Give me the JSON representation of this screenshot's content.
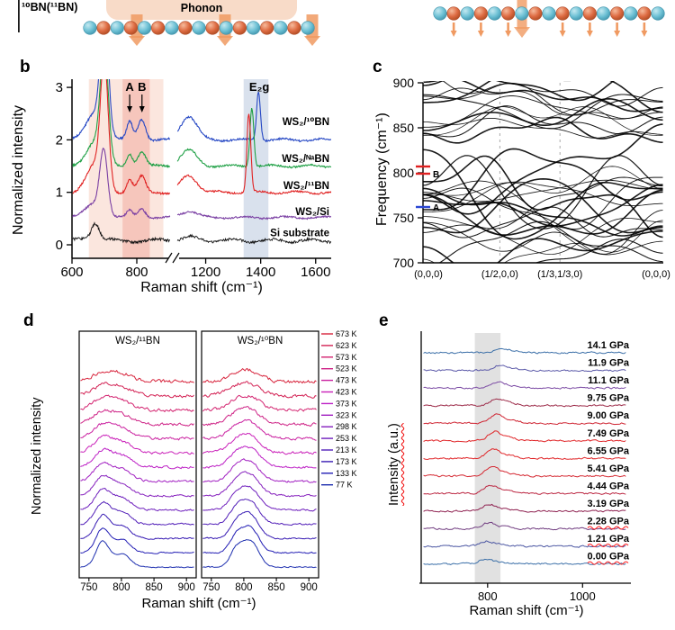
{
  "panel_a": {
    "isotope_label": "¹⁰BN(¹¹BN)",
    "phonon_label": "Phonon",
    "atom_color_1": "#6cc0d4",
    "atom_color_2": "#dd6a41",
    "atom_edge_1": "#3f93ab",
    "atom_edge_2": "#b14f2c",
    "arrow_color": "#f09a62",
    "box_color": "#f8dbc8"
  },
  "panel_letters": {
    "b": "b",
    "c": "c",
    "d": "d",
    "e": "e"
  },
  "chart_data": [
    {
      "id": "b",
      "type": "line",
      "xlabel": "Raman shift (cm⁻¹)",
      "ylabel": "Normalized intensity",
      "xticks": [
        600,
        800,
        1200,
        1400,
        1600
      ],
      "yticks": [
        0,
        1,
        2,
        3
      ],
      "axis_break": [
        905,
        1095
      ],
      "ylim": [
        0,
        3.15
      ],
      "shaded_bands": [
        {
          "x0": 652,
          "x1": 882,
          "color": "#f7cdbd",
          "opacity": 0.5
        },
        {
          "x0": 756,
          "x1": 840,
          "color": "#f2aca0",
          "opacity": 0.55
        },
        {
          "x0": 1338,
          "x1": 1428,
          "color": "#c9d4e6",
          "opacity": 0.7
        }
      ],
      "peak_labels": [
        {
          "text": "A",
          "x": 778,
          "arrow": true
        },
        {
          "text": "B",
          "x": 816,
          "arrow": true
        },
        {
          "text": "E₂g",
          "x": 1395,
          "arrow": false
        }
      ],
      "series": [
        {
          "name": "WS₂/¹⁰BN",
          "color": "#2547c4",
          "offset": 2.0,
          "label_v": 2.28,
          "main_peak_cm": 700,
          "main_peak_h": 2.3,
          "peak_A_h": 0.34,
          "peak_B_h": 0.4,
          "mid_peak_cm": 1138,
          "mid_peak_h": 0.45,
          "e2g_cm": 1392,
          "e2g_h": 0.92,
          "noise": 0.035
        },
        {
          "name": "WS₂/ᴺᵃBN",
          "color": "#1fa045",
          "offset": 1.5,
          "label_v": 1.58,
          "main_peak_cm": 700,
          "main_peak_h": 2.1,
          "peak_A_h": 0.24,
          "peak_B_h": 0.28,
          "mid_peak_cm": 1138,
          "mid_peak_h": 0.3,
          "e2g_cm": 1368,
          "e2g_h": 1.12,
          "noise": 0.035
        },
        {
          "name": "WS₂/¹¹BN",
          "color": "#e02222",
          "offset": 1.0,
          "label_v": 1.06,
          "main_peak_cm": 700,
          "main_peak_h": 2.3,
          "peak_A_h": 0.24,
          "peak_B_h": 0.3,
          "mid_peak_cm": 1138,
          "mid_peak_h": 0.32,
          "e2g_cm": 1357,
          "e2g_h": 1.5,
          "noise": 0.035
        },
        {
          "name": "WS₂/Si",
          "color": "#7a3fa3",
          "offset": 0.52,
          "label_v": 0.57,
          "main_peak_cm": 698,
          "main_peak_h": 1.2,
          "peak_A_h": 0.13,
          "peak_B_h": 0.17,
          "mid_peak_cm": 1138,
          "mid_peak_h": 0.12,
          "e2g_cm": null,
          "e2g_h": 0,
          "noise": 0.03
        },
        {
          "name": "Si substrate",
          "color": "#111111",
          "offset": 0.08,
          "label_v": 0.16,
          "main_peak_cm": 672,
          "main_peak_h": 0.3,
          "peak_A_h": 0,
          "peak_B_h": 0,
          "mid_peak_cm": 1140,
          "mid_peak_h": 0.06,
          "e2g_cm": null,
          "e2g_h": 0,
          "noise": 0.05
        }
      ]
    },
    {
      "id": "c",
      "type": "line",
      "ylabel": "Frequency (cm⁻¹)",
      "yticks": [
        700,
        750,
        800,
        850,
        900
      ],
      "ylim": [
        700,
        900
      ],
      "kpath_labels": [
        "(0,0,0)",
        "(1/2,0,0)",
        "(1/3,1/3,0)",
        "(0,0,0)"
      ],
      "kpath_positions": [
        0,
        0.32,
        0.57,
        1
      ],
      "axis_markers": [
        {
          "label": "B",
          "color": "#e02020",
          "freqs": [
            799,
            807
          ]
        },
        {
          "label": "A",
          "color": "#2a46d4",
          "freqs": [
            762
          ]
        }
      ],
      "band_groups": [
        {
          "count": 14,
          "f_start": 702,
          "f_step": 6.5,
          "amp_min": 8,
          "amp_max": 24
        },
        {
          "count": 8,
          "f_start": 750,
          "f_step": 7,
          "amp_min": 22,
          "amp_max": 46
        },
        {
          "count": 13,
          "f_start": 845,
          "f_step": 4.6,
          "amp_min": 6,
          "amp_max": 18
        }
      ]
    },
    {
      "id": "d",
      "type": "line",
      "xlabel": "Raman shift (cm⁻¹)",
      "ylabel": "Normalized intensity",
      "xticks": [
        750,
        800,
        850,
        900
      ],
      "xlim": [
        735,
        915
      ],
      "temperatures_K": [
        77,
        133,
        173,
        213,
        253,
        298,
        323,
        373,
        423,
        473,
        523,
        573,
        623,
        673
      ],
      "legend_suffix": " K",
      "subpanels": [
        {
          "title": "WS₂/¹¹BN",
          "peak1_cm": 771,
          "peak2_cm": 801
        },
        {
          "title": "WS₂/¹⁰BN",
          "peak1_cm": 789,
          "peak2_cm": 811
        }
      ]
    },
    {
      "id": "e",
      "type": "line",
      "xlabel": "Raman shift (cm⁻¹)",
      "ylabel": "Intensity (a.u.)",
      "ylabel_squiggle": true,
      "xticks": [
        800,
        1000
      ],
      "xlim": [
        660,
        1100
      ],
      "shaded_band": {
        "x0": 773,
        "x1": 827
      },
      "series": [
        {
          "label": "14.1 GPa",
          "pressure_gpa": 14.1,
          "color": "#3b6fa8",
          "squiggle": false
        },
        {
          "label": "11.9 GPa",
          "pressure_gpa": 11.9,
          "color": "#5a58a8",
          "squiggle": false
        },
        {
          "label": "11.1 GPa",
          "pressure_gpa": 11.1,
          "color": "#7b4aa4",
          "squiggle": false
        },
        {
          "label": "9.75 GPa",
          "pressure_gpa": 9.75,
          "color": "#9c2a48",
          "squiggle": false
        },
        {
          "label": "9.00 GPa",
          "pressure_gpa": 9.0,
          "color": "#cf2432",
          "squiggle": false
        },
        {
          "label": "7.49 GPa",
          "pressure_gpa": 7.49,
          "color": "#e02528",
          "squiggle": false
        },
        {
          "label": "6.55 GPa",
          "pressure_gpa": 6.55,
          "color": "#e02528",
          "squiggle": false
        },
        {
          "label": "5.41 GPa",
          "pressure_gpa": 5.41,
          "color": "#d52a33",
          "squiggle": false
        },
        {
          "label": "4.44 GPa",
          "pressure_gpa": 4.44,
          "color": "#bb2540",
          "squiggle": false
        },
        {
          "label": "3.19 GPa",
          "pressure_gpa": 3.19,
          "color": "#8e2150",
          "squiggle": false
        },
        {
          "label": "2.28 GPa",
          "pressure_gpa": 2.28,
          "color": "#703c80",
          "squiggle": true
        },
        {
          "label": "1.21 GPa",
          "pressure_gpa": 1.21,
          "color": "#4b56a2",
          "squiggle": true
        },
        {
          "label": "0.00 GPa",
          "pressure_gpa": 0.0,
          "color": "#3b6fa8",
          "squiggle": true
        }
      ]
    }
  ]
}
